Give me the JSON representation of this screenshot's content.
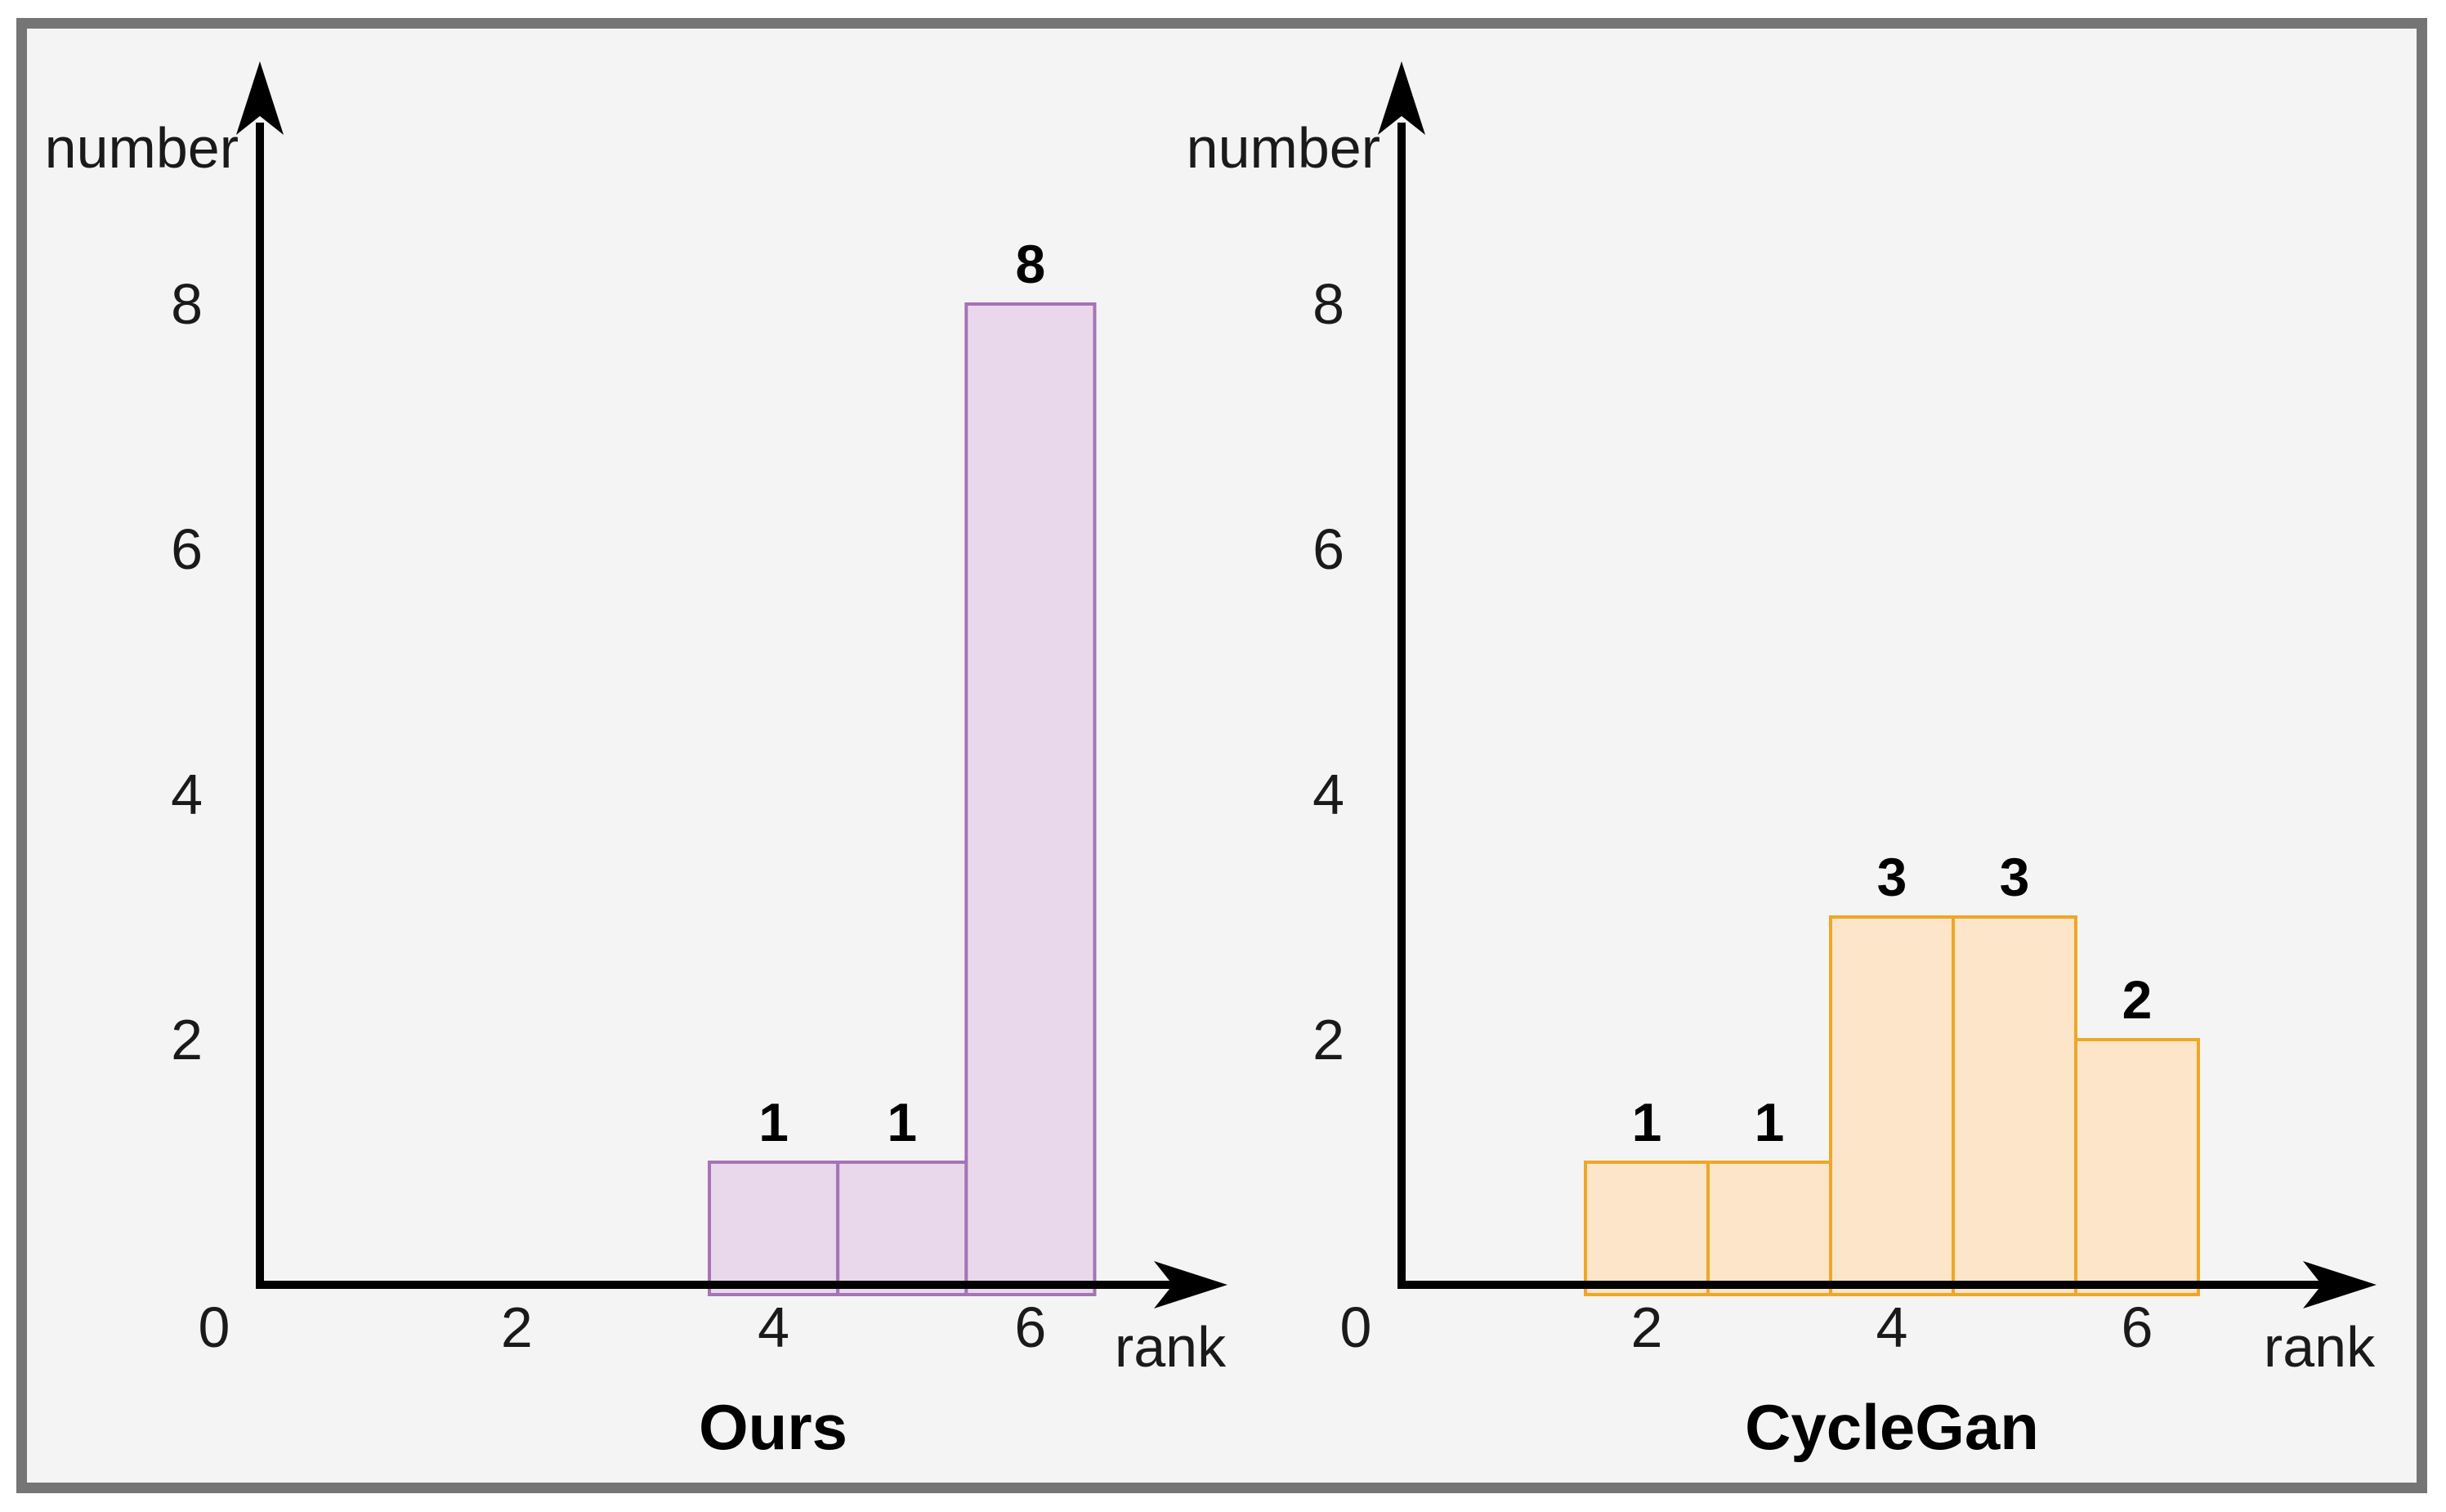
{
  "figure": {
    "outer_bg": "#ffffff",
    "frame_border_color": "#757575",
    "canvas_bg": "#f4f4f4",
    "axis_color": "#000000",
    "text_color": "#1a1a1a",
    "value_label_color": "#000000"
  },
  "chart_data": [
    {
      "type": "bar",
      "title": "Ours",
      "xlabel": "rank",
      "ylabel": "number",
      "categories": [
        4,
        5,
        6
      ],
      "values": [
        1,
        1,
        8
      ],
      "bar_value_labels": [
        "1",
        "1",
        "8"
      ],
      "bin_width": 1,
      "x_ticks": [
        2,
        4,
        6
      ],
      "y_ticks": [
        2,
        4,
        6,
        8
      ],
      "origin_tick_label": "0",
      "xlim": [
        0,
        7.5
      ],
      "ylim": [
        0,
        10
      ],
      "grid": false,
      "legend": false,
      "bar_fill": "#e9d8ec",
      "bar_stroke": "#a673b6"
    },
    {
      "type": "bar",
      "title": "CycleGan",
      "xlabel": "rank",
      "ylabel": "number",
      "categories": [
        2,
        3,
        4,
        5,
        6
      ],
      "values": [
        1,
        1,
        3,
        3,
        2
      ],
      "bar_value_labels": [
        "1",
        "1",
        "3",
        "3",
        "2"
      ],
      "bin_width": 1,
      "x_ticks": [
        2,
        4,
        6
      ],
      "y_ticks": [
        2,
        4,
        6,
        8
      ],
      "origin_tick_label": "0",
      "xlim": [
        0,
        8
      ],
      "ylim": [
        0,
        10
      ],
      "grid": false,
      "legend": false,
      "bar_fill": "#fce5c8",
      "bar_stroke": "#eea727"
    }
  ]
}
